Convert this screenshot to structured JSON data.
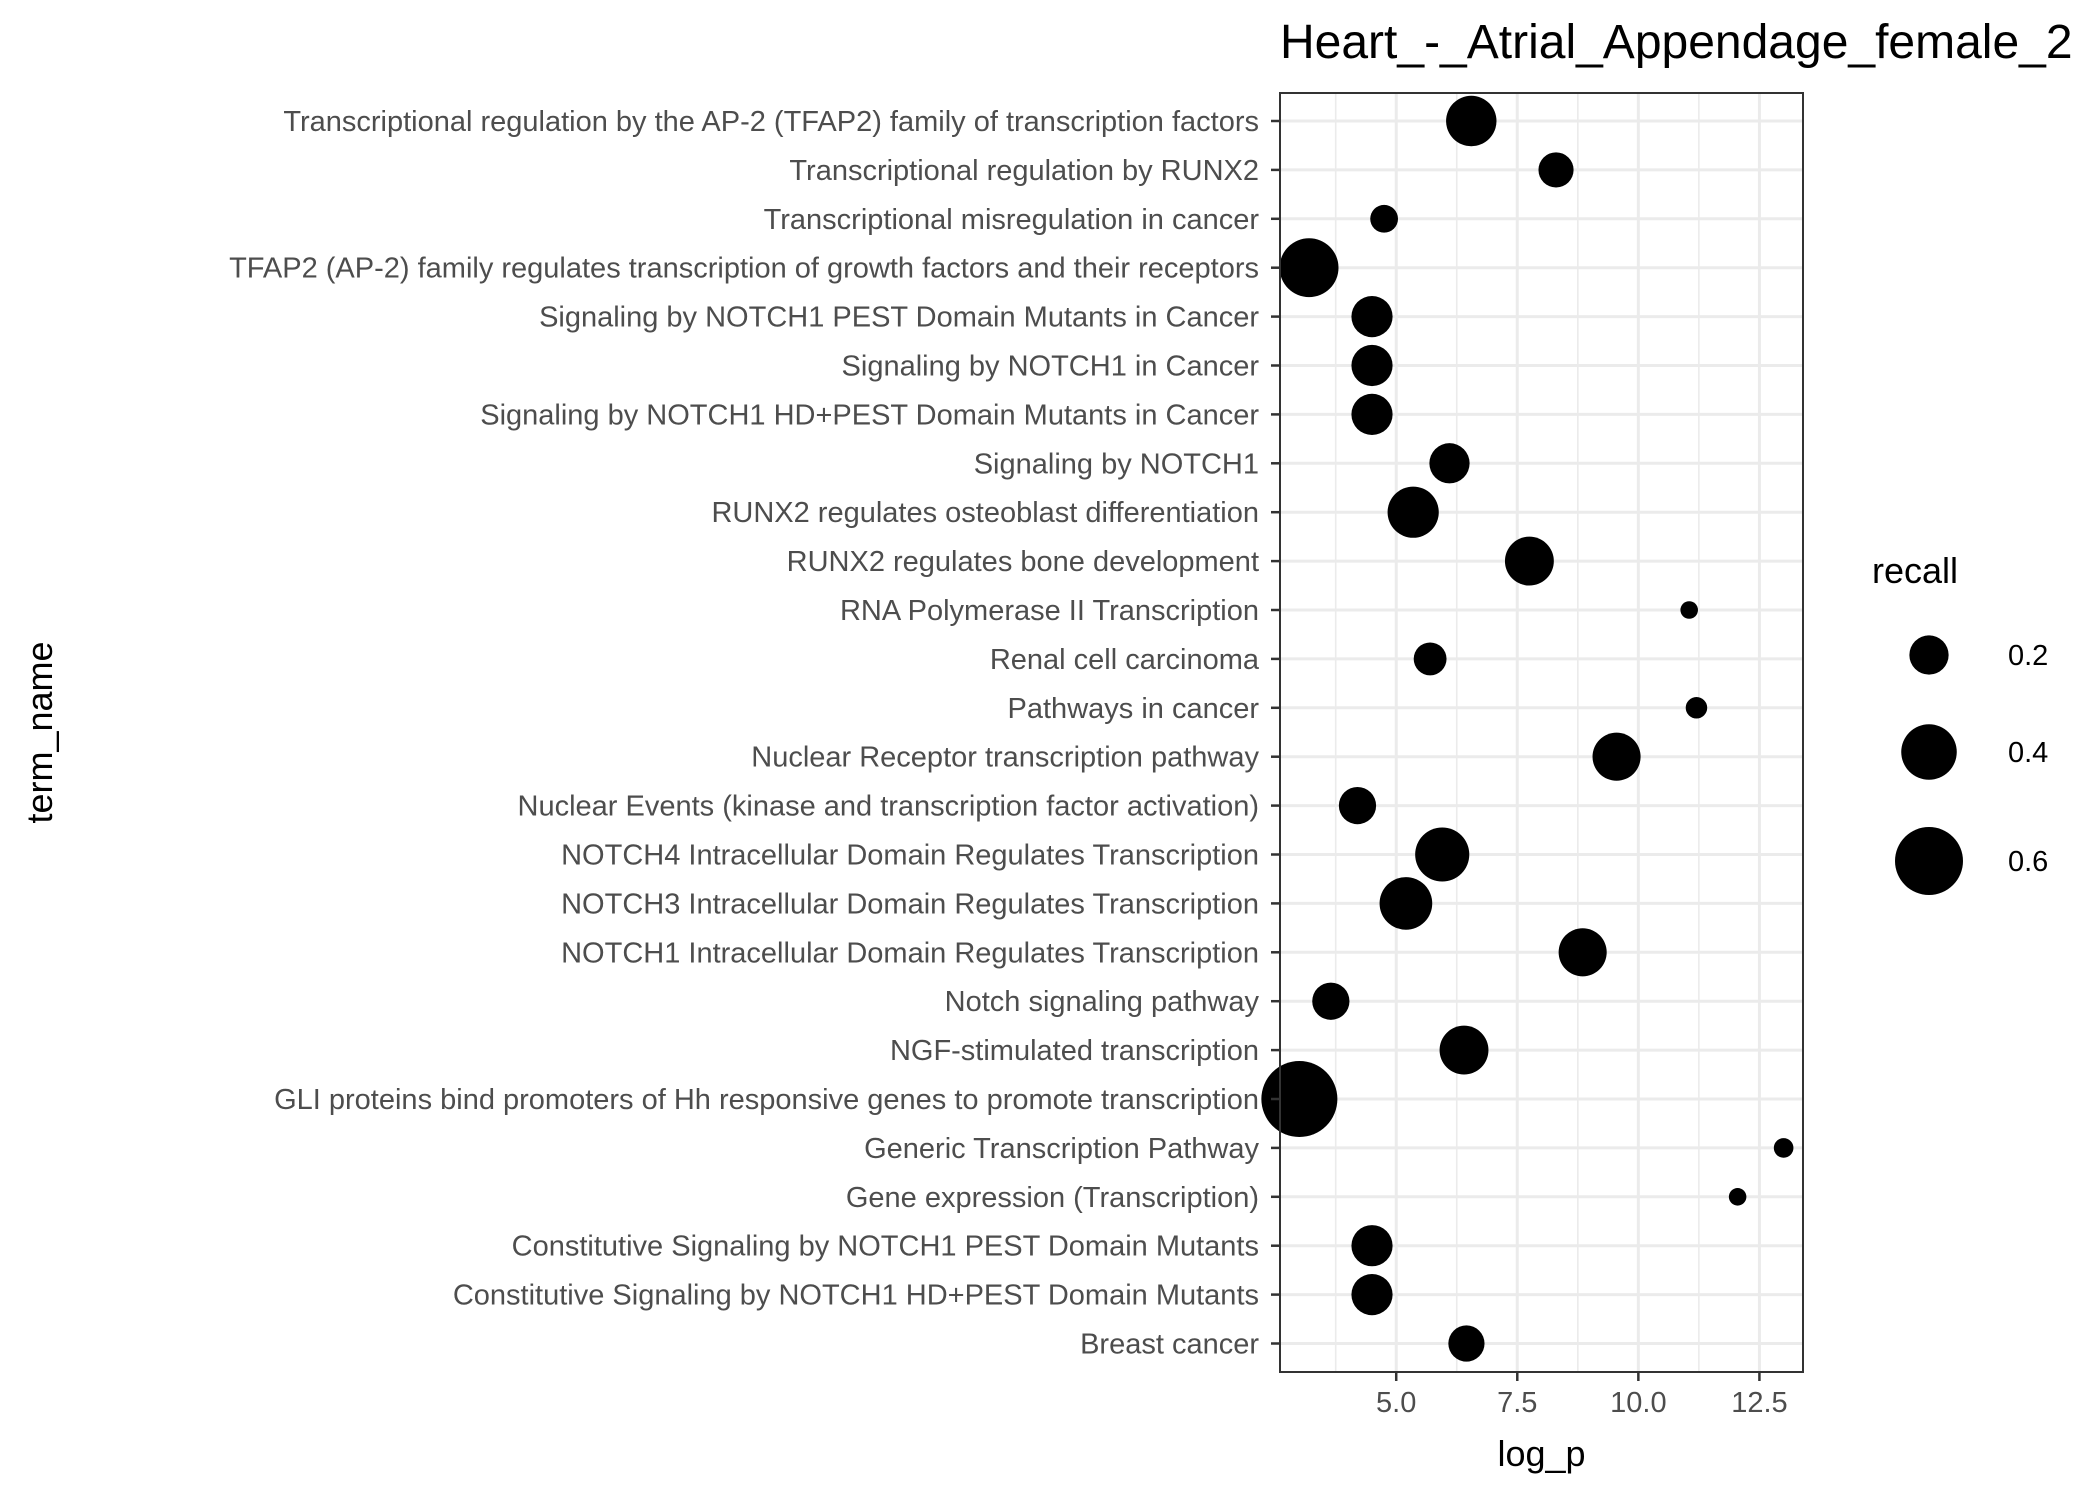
{
  "chart_data": {
    "type": "scatter",
    "title": "Heart_-_Atrial_Appendage_female_2",
    "xlabel": "log_p",
    "ylabel": "term_name",
    "xlim": [
      2.6,
      13.4
    ],
    "x_ticks": [
      5.0,
      7.5,
      10.0,
      12.5
    ],
    "x_tick_labels": [
      "5.0",
      "7.5",
      "10.0",
      "12.5"
    ],
    "grid": true,
    "legend": {
      "title": "recall",
      "position": "right",
      "entries": [
        {
          "label": "0.2",
          "value": 0.2
        },
        {
          "label": "0.4",
          "value": 0.4
        },
        {
          "label": "0.6",
          "value": 0.6
        }
      ]
    },
    "points": [
      {
        "term": "Transcriptional regulation by the AP-2 (TFAP2) family of transcription factors",
        "log_p": 6.55,
        "recall": 0.33
      },
      {
        "term": "Transcriptional regulation by RUNX2",
        "log_p": 8.3,
        "recall": 0.16
      },
      {
        "term": "Transcriptional misregulation in cancer",
        "log_p": 4.75,
        "recall": 0.1
      },
      {
        "term": "TFAP2 (AP-2) family regulates transcription of growth factors and their receptors",
        "log_p": 3.2,
        "recall": 0.45
      },
      {
        "term": "Signaling by NOTCH1 PEST Domain Mutants in Cancer",
        "log_p": 4.5,
        "recall": 0.22
      },
      {
        "term": "Signaling by NOTCH1 in Cancer",
        "log_p": 4.5,
        "recall": 0.22
      },
      {
        "term": "Signaling by NOTCH1 HD+PEST Domain Mutants in Cancer",
        "log_p": 4.5,
        "recall": 0.22
      },
      {
        "term": "Signaling by NOTCH1",
        "log_p": 6.1,
        "recall": 0.21
      },
      {
        "term": "RUNX2 regulates osteoblast differentiation",
        "log_p": 5.35,
        "recall": 0.34
      },
      {
        "term": "RUNX2 regulates bone development",
        "log_p": 7.75,
        "recall": 0.31
      },
      {
        "term": "RNA Polymerase II Transcription",
        "log_p": 11.05,
        "recall": 0.04
      },
      {
        "term": "Renal cell carcinoma",
        "log_p": 5.7,
        "recall": 0.14
      },
      {
        "term": "Pathways in cancer",
        "log_p": 11.2,
        "recall": 0.06
      },
      {
        "term": "Nuclear Receptor transcription pathway",
        "log_p": 9.55,
        "recall": 0.3
      },
      {
        "term": "Nuclear Events (kinase and transcription factor activation)",
        "log_p": 4.2,
        "recall": 0.18
      },
      {
        "term": "NOTCH4 Intracellular Domain Regulates Transcription",
        "log_p": 5.95,
        "recall": 0.38
      },
      {
        "term": "NOTCH3 Intracellular Domain Regulates Transcription",
        "log_p": 5.2,
        "recall": 0.36
      },
      {
        "term": "NOTCH1 Intracellular Domain Regulates Transcription",
        "log_p": 8.85,
        "recall": 0.3
      },
      {
        "term": "Notch signaling pathway",
        "log_p": 3.65,
        "recall": 0.18
      },
      {
        "term": "NGF-stimulated transcription",
        "log_p": 6.4,
        "recall": 0.31
      },
      {
        "term": "GLI proteins bind promoters of Hh responsive genes to promote transcription",
        "log_p": 3.0,
        "recall": 0.75
      },
      {
        "term": "Generic Transcription Pathway",
        "log_p": 13.0,
        "recall": 0.05
      },
      {
        "term": "Gene expression (Transcription)",
        "log_p": 12.05,
        "recall": 0.04
      },
      {
        "term": "Constitutive Signaling by NOTCH1 PEST Domain Mutants",
        "log_p": 4.5,
        "recall": 0.22
      },
      {
        "term": "Constitutive Signaling by NOTCH1 HD+PEST Domain Mutants",
        "log_p": 4.5,
        "recall": 0.22
      },
      {
        "term": "Breast cancer",
        "log_p": 6.45,
        "recall": 0.17
      }
    ],
    "point_color": "#000000"
  }
}
